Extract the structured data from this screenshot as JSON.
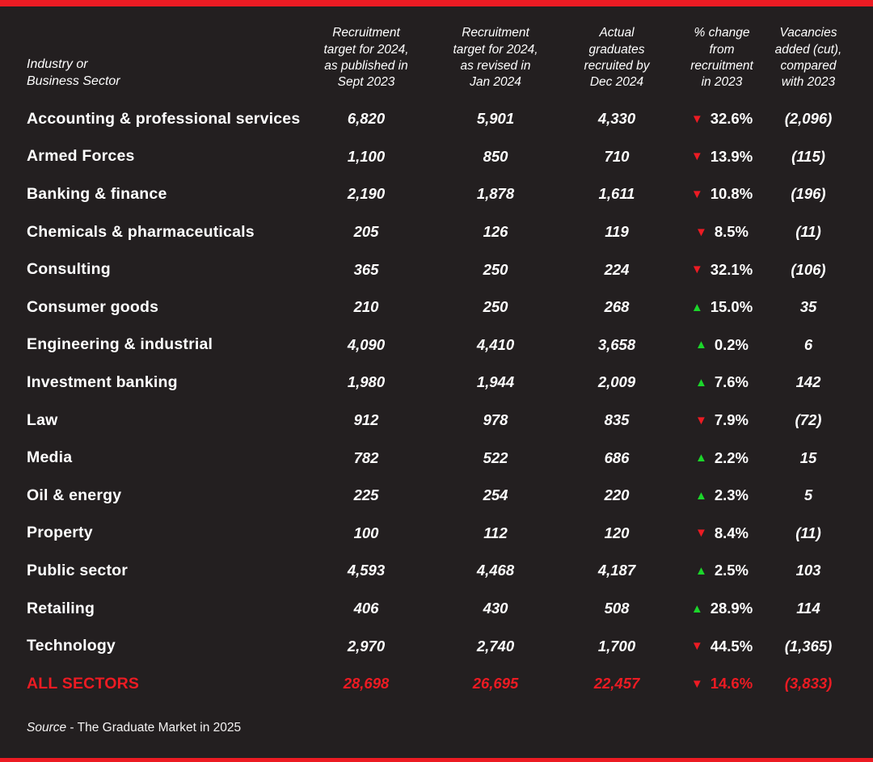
{
  "colors": {
    "background": "#231f20",
    "accent_red": "#ec1b23",
    "up_green": "#1bd62a",
    "text": "#ffffff"
  },
  "table": {
    "columns": [
      {
        "label": "Industry or\nBusiness Sector"
      },
      {
        "label": "Recruitment\ntarget for 2024,\nas published in\nSept 2023"
      },
      {
        "label": "Recruitment\ntarget for 2024,\nas revised in\nJan 2024"
      },
      {
        "label": "Actual\ngraduates\nrecruited by\nDec 2024"
      },
      {
        "label": "% change\nfrom\nrecruitment\nin 2023"
      },
      {
        "label": "Vacancies\nadded (cut),\ncompared\nwith 2023"
      }
    ],
    "rows": [
      {
        "sector": "Accounting & professional services",
        "target_published": "6,820",
        "target_revised": "5,901",
        "actual": "4,330",
        "direction": "down",
        "change_pct": "32.6%",
        "vacancies": "(2,096)"
      },
      {
        "sector": "Armed Forces",
        "target_published": "1,100",
        "target_revised": "850",
        "actual": "710",
        "direction": "down",
        "change_pct": "13.9%",
        "vacancies": "(115)"
      },
      {
        "sector": "Banking & finance",
        "target_published": "2,190",
        "target_revised": "1,878",
        "actual": "1,611",
        "direction": "down",
        "change_pct": "10.8%",
        "vacancies": "(196)"
      },
      {
        "sector": "Chemicals & pharmaceuticals",
        "target_published": "205",
        "target_revised": "126",
        "actual": "119",
        "direction": "down",
        "change_pct": "8.5%",
        "vacancies": "(11)"
      },
      {
        "sector": "Consulting",
        "target_published": "365",
        "target_revised": "250",
        "actual": "224",
        "direction": "down",
        "change_pct": "32.1%",
        "vacancies": "(106)"
      },
      {
        "sector": "Consumer goods",
        "target_published": "210",
        "target_revised": "250",
        "actual": "268",
        "direction": "up",
        "change_pct": "15.0%",
        "vacancies": "35"
      },
      {
        "sector": "Engineering & industrial",
        "target_published": "4,090",
        "target_revised": "4,410",
        "actual": "3,658",
        "direction": "up",
        "change_pct": "0.2%",
        "vacancies": "6"
      },
      {
        "sector": "Investment banking",
        "target_published": "1,980",
        "target_revised": "1,944",
        "actual": "2,009",
        "direction": "up",
        "change_pct": "7.6%",
        "vacancies": "142"
      },
      {
        "sector": "Law",
        "target_published": "912",
        "target_revised": "978",
        "actual": "835",
        "direction": "down",
        "change_pct": "7.9%",
        "vacancies": "(72)"
      },
      {
        "sector": "Media",
        "target_published": "782",
        "target_revised": "522",
        "actual": "686",
        "direction": "up",
        "change_pct": "2.2%",
        "vacancies": "15"
      },
      {
        "sector": "Oil & energy",
        "target_published": "225",
        "target_revised": "254",
        "actual": "220",
        "direction": "up",
        "change_pct": "2.3%",
        "vacancies": "5"
      },
      {
        "sector": "Property",
        "target_published": "100",
        "target_revised": "112",
        "actual": "120",
        "direction": "down",
        "change_pct": "8.4%",
        "vacancies": "(11)"
      },
      {
        "sector": "Public sector",
        "target_published": "4,593",
        "target_revised": "4,468",
        "actual": "4,187",
        "direction": "up",
        "change_pct": "2.5%",
        "vacancies": "103"
      },
      {
        "sector": "Retailing",
        "target_published": "406",
        "target_revised": "430",
        "actual": "508",
        "direction": "up",
        "change_pct": "28.9%",
        "vacancies": "114"
      },
      {
        "sector": "Technology",
        "target_published": "2,970",
        "target_revised": "2,740",
        "actual": "1,700",
        "direction": "down",
        "change_pct": "44.5%",
        "vacancies": "(1,365)"
      }
    ],
    "total_row": {
      "sector": "ALL SECTORS",
      "target_published": "28,698",
      "target_revised": "26,695",
      "actual": "22,457",
      "direction": "down",
      "change_pct": "14.6%",
      "vacancies": "(3,833)"
    }
  },
  "source": {
    "prefix": "Source",
    "text": " - The Graduate Market in 2025"
  },
  "chart_data": {
    "type": "table",
    "title": "Graduate recruitment targets and actual recruitment by industry, 2024 vs 2023",
    "columns": [
      "Industry or Business Sector",
      "Recruitment target for 2024, as published in Sept 2023",
      "Recruitment target for 2024, as revised in Jan 2024",
      "Actual graduates recruited by Dec 2024",
      "% change from recruitment in 2023",
      "Vacancies added (cut), compared with 2023"
    ],
    "rows": [
      [
        "Accounting & professional services",
        6820,
        5901,
        4330,
        -32.6,
        -2096
      ],
      [
        "Armed Forces",
        1100,
        850,
        710,
        -13.9,
        -115
      ],
      [
        "Banking & finance",
        2190,
        1878,
        1611,
        -10.8,
        -196
      ],
      [
        "Chemicals & pharmaceuticals",
        205,
        126,
        119,
        -8.5,
        -11
      ],
      [
        "Consulting",
        365,
        250,
        224,
        -32.1,
        -106
      ],
      [
        "Consumer goods",
        210,
        250,
        268,
        15.0,
        35
      ],
      [
        "Engineering & industrial",
        4090,
        4410,
        3658,
        0.2,
        6
      ],
      [
        "Investment banking",
        1980,
        1944,
        2009,
        7.6,
        142
      ],
      [
        "Law",
        912,
        978,
        835,
        -7.9,
        -72
      ],
      [
        "Media",
        782,
        522,
        686,
        2.2,
        15
      ],
      [
        "Oil & energy",
        225,
        254,
        220,
        2.3,
        5
      ],
      [
        "Property",
        100,
        112,
        120,
        -8.4,
        -11
      ],
      [
        "Public sector",
        4593,
        4468,
        4187,
        2.5,
        103
      ],
      [
        "Retailing",
        406,
        430,
        508,
        28.9,
        114
      ],
      [
        "Technology",
        2970,
        2740,
        1700,
        -44.5,
        -1365
      ]
    ],
    "total": [
      "ALL SECTORS",
      28698,
      26695,
      22457,
      -14.6,
      -3833
    ],
    "source": "Source - The Graduate Market in 2025"
  }
}
